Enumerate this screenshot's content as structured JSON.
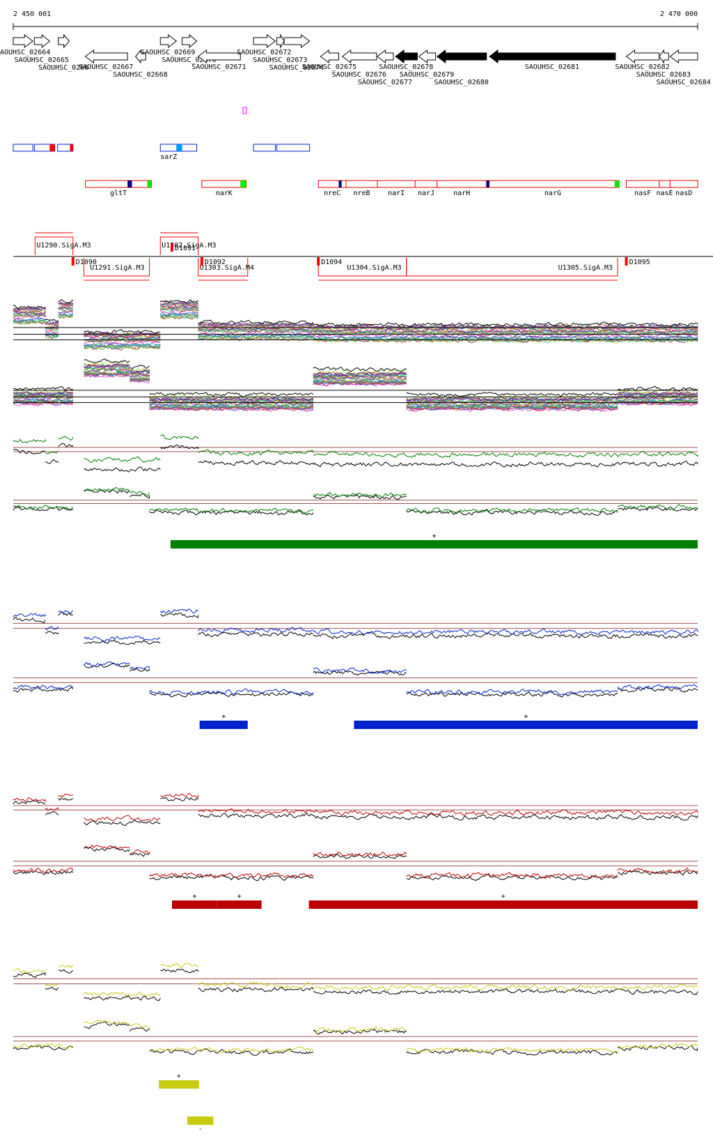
{
  "axis": {
    "start": {
      "value": 2450001,
      "label": "2 450 001"
    },
    "end": {
      "value": 2470000,
      "label": "2 470 000"
    }
  },
  "genes": [
    {
      "label": "AOUHSC_02664",
      "start": 2450001,
      "end": 2450575,
      "strand": "+",
      "fill": "#ffffff"
    },
    {
      "label": "SAOUHSC_02665",
      "start": 2450618,
      "end": 2451065,
      "strand": "+",
      "fill": "#ffffff"
    },
    {
      "label": "SAOUHSC_0266",
      "start": 2451320,
      "end": 2451639,
      "strand": "+",
      "fill": "#ffffff"
    },
    {
      "label": "SAOUHSC_02667",
      "start": 2452107,
      "end": 2453341,
      "strand": "-",
      "fill": "#ffffff"
    },
    {
      "label": "SAOUHSC_02668",
      "start": 2453575,
      "end": 2453873,
      "strand": "-",
      "fill": "#ffffff"
    },
    {
      "label": "SAOUHSC_02669",
      "start": 2454299,
      "end": 2454767,
      "strand": "+",
      "fill": "#ffffff"
    },
    {
      "label": "SAOUHSC_02670",
      "start": 2454936,
      "end": 2455362,
      "strand": "+",
      "fill": "#ffffff"
    },
    {
      "label": "SAOUHSC_02671",
      "start": 2455405,
      "end": 2456639,
      "strand": "-",
      "fill": "#ffffff"
    },
    {
      "label": "SAOUHSC_02672",
      "start": 2457022,
      "end": 2457660,
      "strand": "+",
      "fill": "#ffffff"
    },
    {
      "label": "SAOUHSC_02673",
      "start": 2457703,
      "end": 2457916,
      "strand": "+",
      "fill": "#ffffff"
    },
    {
      "label": "SAOUHSC_02674",
      "start": 2457916,
      "end": 2458661,
      "strand": "+",
      "fill": "#ffffff"
    },
    {
      "label": "SAOUHSC_02675",
      "start": 2458980,
      "end": 2459512,
      "strand": "-",
      "fill": "#ffffff"
    },
    {
      "label": "SAOUHSC_02676",
      "start": 2459618,
      "end": 2460619,
      "strand": "-",
      "fill": "#ffffff"
    },
    {
      "label": "SAOUHSC_02677",
      "start": 2460640,
      "end": 2461107,
      "strand": "-",
      "fill": "#ffffff"
    },
    {
      "label": "SAOUHSC_02678",
      "start": 2461171,
      "end": 2461809,
      "strand": "-",
      "fill": "#000000"
    },
    {
      "label": "SAOUHSC_02679",
      "start": 2461852,
      "end": 2462341,
      "strand": "-",
      "fill": "#ffffff"
    },
    {
      "label": "SAOUHSC_02680",
      "start": 2462384,
      "end": 2463830,
      "strand": "-",
      "fill": "#000000"
    },
    {
      "label": "SAOUHSC_02681",
      "start": 2463916,
      "end": 2467597,
      "strand": "-",
      "fill": "#000000"
    },
    {
      "label": "SAOUHSC_02682",
      "start": 2467916,
      "end": 2468874,
      "strand": "-",
      "fill": "#ffffff"
    },
    {
      "label": "SAOUHSC_02683",
      "start": 2468874,
      "end": 2469150,
      "strand": "-",
      "fill": "#ffffff"
    },
    {
      "label": "SAOUHSC_02684",
      "start": 2469193,
      "end": 2470000,
      "strand": "-",
      "fill": "#ffffff"
    }
  ],
  "regulators": [
    {
      "label": null,
      "start": 2450001,
      "end": 2450575,
      "marks": []
    },
    {
      "label": null,
      "start": 2450618,
      "end": 2451214,
      "marks": [
        {
          "start": 2451065,
          "end": 2451214,
          "color": "#ff0000"
        }
      ]
    },
    {
      "label": null,
      "start": 2451299,
      "end": 2451746,
      "marks": [
        {
          "start": 2451660,
          "end": 2451746,
          "color": "#ff0000"
        }
      ]
    },
    {
      "label": "sarZ",
      "start": 2454299,
      "end": 2455362,
      "marks": [
        {
          "start": 2454767,
          "end": 2454936,
          "color": "#0099ff"
        }
      ]
    },
    {
      "label": null,
      "start": 2457022,
      "end": 2457660,
      "marks": []
    },
    {
      "label": null,
      "start": 2457703,
      "end": 2458661,
      "marks": []
    }
  ],
  "operon_genes": [
    {
      "label": "gltT",
      "start": 2452107,
      "end": 2454043,
      "marks": [
        {
          "start": 2453341,
          "end": 2453469,
          "color": "#000080"
        },
        {
          "start": 2453916,
          "end": 2454043,
          "color": "#00ee00"
        }
      ]
    },
    {
      "label": "narK",
      "start": 2455511,
      "end": 2456809,
      "marks": [
        {
          "start": 2456639,
          "end": 2456809,
          "color": "#00ee00"
        }
      ]
    },
    {
      "label": "nreC",
      "start": 2458916,
      "end": 2459725,
      "marks": [
        {
          "start": 2459512,
          "end": 2459597,
          "color": "#000080"
        }
      ]
    },
    {
      "label": "nreB",
      "start": 2459725,
      "end": 2460640,
      "marks": []
    },
    {
      "label": "narI",
      "start": 2460640,
      "end": 2461745,
      "marks": []
    },
    {
      "label": "narJ",
      "start": 2461745,
      "end": 2462384,
      "marks": []
    },
    {
      "label": "narH",
      "start": 2462384,
      "end": 2463830,
      "marks": []
    },
    {
      "label": "narG",
      "start": 2463830,
      "end": 2467703,
      "marks": [
        {
          "start": 2463830,
          "end": 2463916,
          "color": "#000080"
        },
        {
          "start": 2467575,
          "end": 2467703,
          "color": "#00ee00"
        }
      ]
    },
    {
      "label": "nasF",
      "start": 2467916,
      "end": 2468874,
      "marks": []
    },
    {
      "label": "nasE",
      "start": 2468874,
      "end": 2469193,
      "marks": []
    },
    {
      "label": "nasD",
      "start": 2469193,
      "end": 2470000,
      "marks": []
    }
  ],
  "transcription_units": [
    {
      "label": "U1290.SigA.M3",
      "start": 2450639,
      "end": 2451746,
      "side": "above"
    },
    {
      "label": "U1302.SigA.M3",
      "start": 2454299,
      "end": 2455405,
      "side": "above"
    },
    {
      "label": "D1091",
      "start": 2454639,
      "end": 2455405,
      "side": "above"
    },
    {
      "label": "U1291.SigA.M3",
      "start": 2452065,
      "end": 2453980,
      "side": "below"
    },
    {
      "label": "D1090",
      "start": 2451746,
      "end": 2452065,
      "side": "below"
    },
    {
      "label": "U1303.SigA.M4",
      "start": 2455405,
      "end": 2456852,
      "side": "below"
    },
    {
      "label": "D1092",
      "start": 2455511,
      "end": 2455900,
      "side": "below"
    },
    {
      "label": "D1094",
      "start": 2458916,
      "end": 2459300,
      "side": "below"
    },
    {
      "label": "U1304.SigA.M3",
      "start": 2458916,
      "end": 2461490,
      "side": "below"
    },
    {
      "label": "U1305.SigA.M3",
      "start": 2461490,
      "end": 2467660,
      "side": "below"
    },
    {
      "label": "D1095",
      "start": 2467916,
      "end": 2468300,
      "side": "below"
    }
  ],
  "profiles": {
    "plus": [
      {
        "start": 2450001,
        "end": 2450937,
        "level": 0.7
      },
      {
        "start": 2450937,
        "end": 2451320,
        "level": 0.45
      },
      {
        "start": 2451320,
        "end": 2451746,
        "level": 0.8
      },
      {
        "start": 2452065,
        "end": 2454299,
        "level": 0.25
      },
      {
        "start": 2454299,
        "end": 2455405,
        "level": 0.8
      },
      {
        "start": 2455405,
        "end": 2458767,
        "level": 0.42
      },
      {
        "start": 2458767,
        "end": 2470000,
        "level": 0.38
      }
    ],
    "minus": [
      {
        "start": 2450001,
        "end": 2451746,
        "level": 0.35
      },
      {
        "start": 2452065,
        "end": 2453405,
        "level": 0.85
      },
      {
        "start": 2453405,
        "end": 2453980,
        "level": 0.75
      },
      {
        "start": 2453980,
        "end": 2458767,
        "level": 0.25
      },
      {
        "start": 2458767,
        "end": 2461490,
        "level": 0.7
      },
      {
        "start": 2461490,
        "end": 2467660,
        "level": 0.25
      },
      {
        "start": 2467660,
        "end": 2470000,
        "level": 0.35
      }
    ]
  },
  "tracks": [
    {
      "color": "#008000",
      "bars": [
        {
          "start": 2454597,
          "end": 2470000,
          "sign": "+"
        }
      ]
    },
    {
      "color": "#0022cc",
      "bars": [
        {
          "start": 2455447,
          "end": 2456852,
          "sign": "+"
        },
        {
          "start": 2459958,
          "end": 2470000,
          "sign": "+"
        }
      ]
    },
    {
      "color": "#bb0000",
      "bars": [
        {
          "start": 2454639,
          "end": 2455958,
          "sign": "+"
        },
        {
          "start": 2455958,
          "end": 2457257,
          "sign": "+"
        },
        {
          "start": 2458639,
          "end": 2470000,
          "sign": "+"
        }
      ]
    },
    {
      "color": "#c8cc10",
      "bars": [
        {
          "start": 2454257,
          "end": 2455427,
          "sign": "+"
        },
        {
          "start": 2455086,
          "end": 2455852,
          "sign": "-"
        }
      ]
    }
  ]
}
